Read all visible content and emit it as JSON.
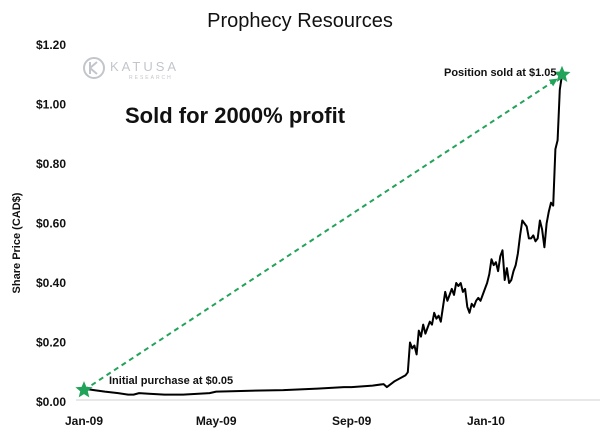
{
  "logo": {
    "name": "KATUSA",
    "sub": "RESEARCH",
    "color": "#c2c6cc"
  },
  "chart_data": {
    "type": "line",
    "title": "Prophecy Resources",
    "xlabel": "",
    "ylabel": "Share Price (CAD$)",
    "ylim": [
      0,
      1.2
    ],
    "y_ticks": [
      0,
      0.2,
      0.4,
      0.6,
      0.8,
      1.0,
      1.2
    ],
    "y_tick_labels": [
      "$0.00",
      "$0.20",
      "$0.40",
      "$0.60",
      "$0.80",
      "$1.00",
      "$1.20"
    ],
    "x_range": [
      "2009-01-01",
      "2010-03-31"
    ],
    "x_ticks": [
      "2009-01-01",
      "2009-05-01",
      "2009-09-01",
      "2010-01-01"
    ],
    "x_tick_labels": [
      "Jan-09",
      "May-09",
      "Sep-09",
      "Jan-10"
    ],
    "grid": false,
    "legend": "none",
    "series": [
      {
        "color": "#000000",
        "points": [
          [
            "2009-01-01",
            0.045
          ],
          [
            "2009-01-10",
            0.04
          ],
          [
            "2009-01-20",
            0.035
          ],
          [
            "2009-02-01",
            0.03
          ],
          [
            "2009-02-10",
            0.025
          ],
          [
            "2009-02-15",
            0.025
          ],
          [
            "2009-02-20",
            0.03
          ],
          [
            "2009-03-01",
            0.028
          ],
          [
            "2009-03-15",
            0.025
          ],
          [
            "2009-04-01",
            0.025
          ],
          [
            "2009-04-15",
            0.028
          ],
          [
            "2009-04-25",
            0.03
          ],
          [
            "2009-05-01",
            0.035
          ],
          [
            "2009-05-15",
            0.036
          ],
          [
            "2009-06-01",
            0.038
          ],
          [
            "2009-07-01",
            0.04
          ],
          [
            "2009-08-01",
            0.045
          ],
          [
            "2009-08-25",
            0.05
          ],
          [
            "2009-09-01",
            0.05
          ],
          [
            "2009-09-20",
            0.055
          ],
          [
            "2009-09-30",
            0.06
          ],
          [
            "2009-10-03",
            0.05
          ],
          [
            "2009-10-10",
            0.07
          ],
          [
            "2009-10-20",
            0.09
          ],
          [
            "2009-10-22",
            0.1
          ],
          [
            "2009-10-24",
            0.2
          ],
          [
            "2009-10-26",
            0.18
          ],
          [
            "2009-10-28",
            0.19
          ],
          [
            "2009-10-30",
            0.16
          ],
          [
            "2009-11-01",
            0.24
          ],
          [
            "2009-11-03",
            0.22
          ],
          [
            "2009-11-05",
            0.26
          ],
          [
            "2009-11-07",
            0.23
          ],
          [
            "2009-11-09",
            0.25
          ],
          [
            "2009-11-11",
            0.27
          ],
          [
            "2009-11-13",
            0.26
          ],
          [
            "2009-11-15",
            0.3
          ],
          [
            "2009-11-17",
            0.28
          ],
          [
            "2009-11-19",
            0.29
          ],
          [
            "2009-11-21",
            0.27
          ],
          [
            "2009-11-23",
            0.32
          ],
          [
            "2009-11-25",
            0.37
          ],
          [
            "2009-11-27",
            0.34
          ],
          [
            "2009-11-29",
            0.36
          ],
          [
            "2009-12-01",
            0.38
          ],
          [
            "2009-12-03",
            0.36
          ],
          [
            "2009-12-05",
            0.4
          ],
          [
            "2009-12-07",
            0.39
          ],
          [
            "2009-12-09",
            0.4
          ],
          [
            "2009-12-11",
            0.37
          ],
          [
            "2009-12-13",
            0.38
          ],
          [
            "2009-12-15",
            0.32
          ],
          [
            "2009-12-17",
            0.3
          ],
          [
            "2009-12-19",
            0.33
          ],
          [
            "2009-12-21",
            0.32
          ],
          [
            "2009-12-23",
            0.34
          ],
          [
            "2009-12-25",
            0.35
          ],
          [
            "2009-12-27",
            0.34
          ],
          [
            "2009-12-29",
            0.36
          ],
          [
            "2009-12-31",
            0.38
          ],
          [
            "2010-01-02",
            0.4
          ],
          [
            "2010-01-04",
            0.43
          ],
          [
            "2010-01-06",
            0.48
          ],
          [
            "2010-01-08",
            0.46
          ],
          [
            "2010-01-10",
            0.47
          ],
          [
            "2010-01-12",
            0.44
          ],
          [
            "2010-01-14",
            0.49
          ],
          [
            "2010-01-16",
            0.51
          ],
          [
            "2010-01-18",
            0.41
          ],
          [
            "2010-01-20",
            0.45
          ],
          [
            "2010-01-22",
            0.4
          ],
          [
            "2010-01-24",
            0.41
          ],
          [
            "2010-01-26",
            0.44
          ],
          [
            "2010-01-28",
            0.46
          ],
          [
            "2010-01-30",
            0.5
          ],
          [
            "2010-02-01",
            0.56
          ],
          [
            "2010-02-03",
            0.61
          ],
          [
            "2010-02-05",
            0.6
          ],
          [
            "2010-02-07",
            0.59
          ],
          [
            "2010-02-09",
            0.55
          ],
          [
            "2010-02-11",
            0.55
          ],
          [
            "2010-02-13",
            0.56
          ],
          [
            "2010-02-15",
            0.54
          ],
          [
            "2010-02-17",
            0.55
          ],
          [
            "2010-02-19",
            0.61
          ],
          [
            "2010-02-21",
            0.58
          ],
          [
            "2010-02-23",
            0.52
          ],
          [
            "2010-02-25",
            0.6
          ],
          [
            "2010-02-27",
            0.64
          ],
          [
            "2010-03-01",
            0.67
          ],
          [
            "2010-03-03",
            0.66
          ],
          [
            "2010-03-05",
            0.85
          ],
          [
            "2010-03-07",
            0.88
          ],
          [
            "2010-03-09",
            1.05
          ],
          [
            "2010-03-11",
            1.1
          ]
        ]
      }
    ],
    "annotations": [
      {
        "text": "Sold for 2000% profit",
        "style": "large"
      },
      {
        "text": "Initial purchase at $0.05",
        "marker": "star",
        "point": [
          "2009-01-01",
          0.04
        ]
      },
      {
        "text": "Position  sold at $1.05",
        "marker": "star",
        "point": [
          "2010-03-11",
          1.1
        ]
      }
    ],
    "trend_arrow": {
      "from": [
        "2009-01-01",
        0.04
      ],
      "to": [
        "2010-03-11",
        1.1
      ],
      "style": "dashed",
      "color": "#22a35a"
    },
    "marker_color": "#22a35a"
  }
}
